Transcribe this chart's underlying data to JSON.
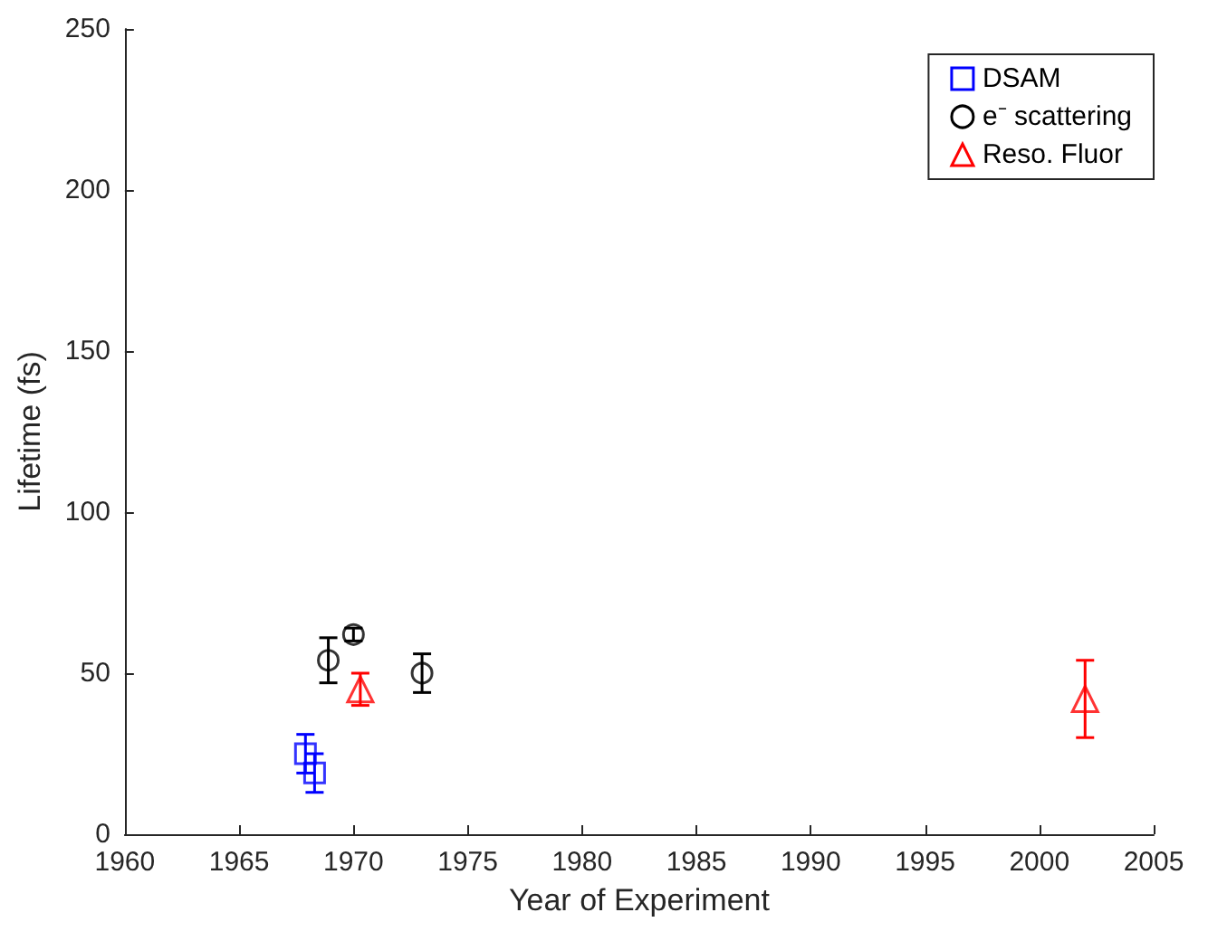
{
  "chart_data": {
    "type": "scatter",
    "xlabel": "Year of Experiment",
    "ylabel": "Lifetime (fs)",
    "xlim": [
      1960,
      2005
    ],
    "xticks": [
      1960,
      1965,
      1970,
      1975,
      1980,
      1985,
      1990,
      1995,
      2000,
      2005
    ],
    "ylim": [
      0,
      250
    ],
    "yticks": [
      0,
      50,
      100,
      150,
      200,
      250
    ],
    "grid": false,
    "legend": "top right",
    "series": [
      {
        "name": "DSAM",
        "color": "#0000ff",
        "marker": "square",
        "x": [
          1967.9,
          1968.3
        ],
        "values": [
          25,
          19
        ],
        "errors": [
          6,
          6
        ]
      },
      {
        "name": "e⁻ scattering",
        "color": "#000000",
        "marker": "circle",
        "x": [
          1968.9,
          1970,
          1973
        ],
        "values": [
          54,
          62,
          50
        ],
        "errors": [
          7,
          2,
          6
        ]
      },
      {
        "name": "Reso. Fluor",
        "color": "#ff0000",
        "marker": "triangle",
        "x": [
          1970.3,
          2002
        ],
        "values": [
          45,
          42
        ],
        "errors": [
          5,
          12
        ]
      }
    ]
  }
}
